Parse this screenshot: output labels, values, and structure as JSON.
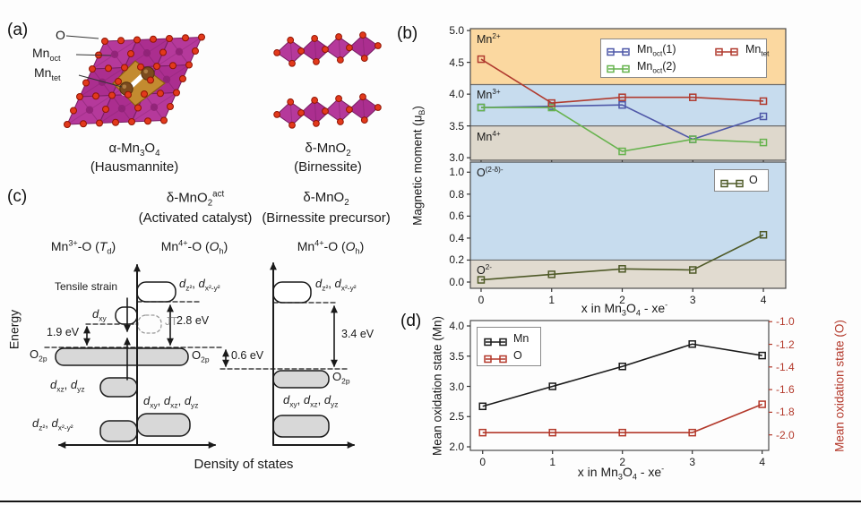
{
  "figure": {
    "panel_letters": {
      "a": "(a)",
      "b": "(b)",
      "c": "(c)",
      "d": "(d)"
    }
  },
  "panel_a": {
    "atom_labels": {
      "o": "O",
      "mn_oct": "Mn~oct~",
      "mn_tet": "Mn~tet~"
    },
    "structures": [
      {
        "title": "α-Mn~3~O~4~",
        "subtitle": "(Hausmannite)"
      },
      {
        "title": "δ-MnO~2~",
        "subtitle": "(Birnessite)"
      }
    ],
    "colors": {
      "octahedra": "#b5399b",
      "octahedra_edge": "#771e63",
      "oxygen": "#e2391b",
      "oxygen_edge": "#8f1504",
      "tetrahedron": "#c38b30",
      "tetrahedron_edge": "#8a5a12",
      "mn_tet_atom": "#7b4b1e",
      "mn_oct_atom": "#8f2377"
    }
  },
  "panel_c": {
    "left_diagram": {
      "title": "δ-MnO~2~^act^",
      "subtitle": "(Activated catalyst)",
      "columns": [
        "Mn^3+^-O (*T*~d~)",
        "Mn^4+^-O (*O*~h~)"
      ]
    },
    "right_diagram": {
      "title": "δ-MnO~2~",
      "subtitle": "(Birnessite precursor)",
      "columns": [
        "Mn^4+^-O (*O*~h~)"
      ]
    },
    "axis": {
      "y": "Energy",
      "x": "Density of states"
    },
    "labels": {
      "tensile": "Tensile strain",
      "jt": "JT",
      "dxy": "*d*~xy~",
      "dz2x2y2": "*d*~z²~, *d*~x²-y²~",
      "o2p": "O~2p~",
      "dxz_yz": "*d*~xz~, *d*~yz~",
      "dxy_xz_yz": "*d*~xy~, *d*~xz~, *d*~yz~",
      "gap_19": "1.9 eV",
      "gap_28": "2.8 eV",
      "gap_06": "0.6 eV",
      "gap_34": "3.4 eV"
    }
  },
  "chart_data": [
    {
      "id": "b-top",
      "type": "line",
      "x": [
        0,
        1,
        2,
        3,
        4
      ],
      "series": [
        {
          "name": "Mn~oct~(1)",
          "color": "#4f58a8",
          "values": [
            3.79,
            3.81,
            3.83,
            3.29,
            3.65
          ]
        },
        {
          "name": "Mn~oct~(2)",
          "color": "#67b34e",
          "values": [
            3.79,
            3.79,
            3.1,
            3.29,
            3.24
          ]
        },
        {
          "name": "Mn~tet~",
          "color": "#b03a2e",
          "values": [
            4.55,
            3.86,
            3.95,
            3.95,
            3.89
          ]
        }
      ],
      "xlim": [
        -0.152,
        4.317
      ],
      "ylim": [
        2.96,
        5.03
      ],
      "xticks": [
        0,
        1,
        2,
        3,
        4
      ],
      "yticks": [
        3.0,
        3.5,
        4.0,
        4.5,
        5.0
      ],
      "ytick_labels": [
        "3.0",
        "3.5",
        "4.0",
        "4.5",
        "5.0"
      ],
      "bands": [
        {
          "label": "Mn^2+^",
          "from": 4.15,
          "to": 5.03,
          "color": "#fbd8a0"
        },
        {
          "label": "Mn^3+^",
          "from": 3.5,
          "to": 4.15,
          "color": "#c7dcee"
        },
        {
          "label": "Mn^4+^",
          "from": 2.96,
          "to": 3.5,
          "color": "#ded8cc"
        }
      ],
      "ylabel": "Magnetic moment (μ~B~)",
      "legend_position": "upper right"
    },
    {
      "id": "b-bottom",
      "type": "line",
      "x": [
        0,
        1,
        2,
        3,
        4
      ],
      "series": [
        {
          "name": "O",
          "color": "#4f5a28",
          "values": [
            0.02,
            0.07,
            0.12,
            0.11,
            0.43
          ]
        }
      ],
      "xlim": [
        -0.152,
        4.317
      ],
      "ylim": [
        -0.057,
        1.092
      ],
      "xticks": [
        0,
        1,
        2,
        3,
        4
      ],
      "xtick_labels": [
        "0",
        "1",
        "2",
        "3",
        "4"
      ],
      "yticks": [
        0.0,
        0.2,
        0.4,
        0.6,
        0.8,
        1.0
      ],
      "ytick_labels": [
        "0.0",
        "0.2",
        "0.4",
        "0.6",
        "0.8",
        "1.0"
      ],
      "bands": [
        {
          "label": "O^(2-δ)-^",
          "from": 0.2,
          "to": 1.092,
          "color": "#c7dcee"
        },
        {
          "label": "O^2-^",
          "from": -0.057,
          "to": 0.2,
          "color": "#e1dbd0"
        }
      ],
      "xlabel": "x in Mn~3~O~4~ - xe^-^",
      "legend_position": "upper right"
    },
    {
      "id": "d",
      "type": "line",
      "x": [
        0,
        1,
        2,
        3,
        4
      ],
      "series": [
        {
          "name": "Mn",
          "color": "#1a1a1a",
          "axis": "left",
          "values": [
            2.67,
            3.0,
            3.33,
            3.7,
            3.51
          ]
        },
        {
          "name": "O",
          "color": "#b3392b",
          "axis": "right",
          "values": [
            -1.98,
            -1.98,
            -1.98,
            -1.98,
            -1.73
          ]
        }
      ],
      "xlim": [
        -0.176,
        4.094
      ],
      "ylim_left": [
        1.941,
        4.089
      ],
      "ylim_right": [
        -2.137,
        -0.99
      ],
      "xticks": [
        0,
        1,
        2,
        3,
        4
      ],
      "xtick_labels": [
        "0",
        "1",
        "2",
        "3",
        "4"
      ],
      "yticks_left": [
        2.0,
        2.5,
        3.0,
        3.5,
        4.0
      ],
      "ytick_labels_left": [
        "2.0",
        "2.5",
        "3.0",
        "3.5",
        "4.0"
      ],
      "yticks_right": [
        -1.0,
        -1.2,
        -1.4,
        -1.6,
        -1.8,
        -2.0
      ],
      "ytick_labels_right": [
        "-1.0",
        "-1.2",
        "-1.4",
        "-1.6",
        "-1.8",
        "-2.0"
      ],
      "xlabel": "x in Mn~3~O~4~ - xe^-^",
      "ylabel": "Mean oxidation state (Mn)",
      "ylabel_right": "Mean oxidation state (O)",
      "legend_position": "upper left"
    }
  ]
}
